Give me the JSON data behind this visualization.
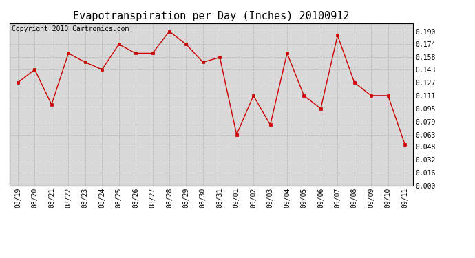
{
  "title": "Evapotranspiration per Day (Inches) 20100912",
  "copyright_text": "Copyright 2010 Cartronics.com",
  "labels": [
    "08/19",
    "08/20",
    "08/21",
    "08/22",
    "08/23",
    "08/24",
    "08/25",
    "08/26",
    "08/27",
    "08/28",
    "08/29",
    "08/30",
    "08/31",
    "09/01",
    "09/02",
    "09/03",
    "09/04",
    "09/05",
    "09/06",
    "09/07",
    "09/08",
    "09/09",
    "09/10",
    "09/11"
  ],
  "values": [
    0.127,
    0.143,
    0.1,
    0.163,
    0.152,
    0.143,
    0.174,
    0.163,
    0.163,
    0.19,
    0.174,
    0.152,
    0.158,
    0.063,
    0.111,
    0.075,
    0.163,
    0.111,
    0.095,
    0.185,
    0.127,
    0.111,
    0.111,
    0.051
  ],
  "yticks": [
    0.0,
    0.016,
    0.032,
    0.048,
    0.063,
    0.079,
    0.095,
    0.111,
    0.127,
    0.143,
    0.158,
    0.174,
    0.19
  ],
  "ylim": [
    0.0,
    0.2
  ],
  "line_color": "#cc0000",
  "marker_color": "#cc0000",
  "bg_color": "#ffffff",
  "plot_bg_color": "#d8d8d8",
  "grid_color": "#bbbbbb",
  "title_fontsize": 11,
  "tick_fontsize": 7,
  "copyright_fontsize": 7
}
